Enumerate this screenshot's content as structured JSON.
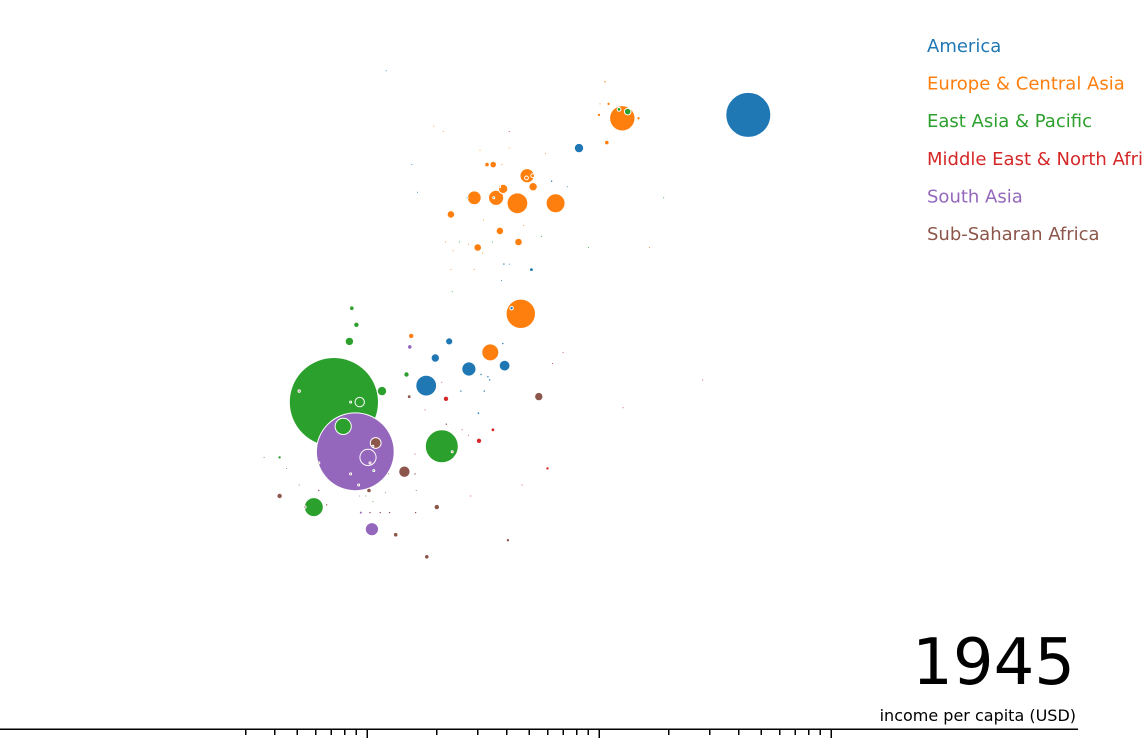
{
  "chart_data": {
    "type": "scatter",
    "title": "",
    "year": "1945",
    "xlabel": "income per capita (USD)",
    "ylabel": "",
    "xscale": "log",
    "xlim": [
      300,
      100000
    ],
    "ylim": [
      10,
      75
    ],
    "grid": false,
    "legend_position": "top-right",
    "region_colors": {
      "America": "#1f77b4",
      "Europe & Central Asia": "#ff7f0e",
      "East Asia & Pacific": "#2ca02c",
      "Middle East & North Africa": "#d62728",
      "South Asia": "#9467bd",
      "Sub-Saharan Africa": "#8c564b"
    },
    "legend": [
      {
        "name": "America",
        "color": "#1f77b4"
      },
      {
        "name": "Europe & Central Asia",
        "color": "#ff7f0e"
      },
      {
        "name": "East Asia & Pacific",
        "color": "#2ca02c"
      },
      {
        "name": "Middle East & North Africa",
        "color": "#d62728"
      },
      {
        "name": "South Asia",
        "color": "#9467bd"
      },
      {
        "name": "Sub-Saharan Africa",
        "color": "#8c564b"
      }
    ],
    "points": [
      {
        "region": "East Asia & Pacific",
        "x": 720,
        "y": 39.5,
        "pop": 550000000
      },
      {
        "region": "South Asia",
        "x": 890,
        "y": 35.0,
        "pop": 420000000
      },
      {
        "region": "America",
        "x": 44000,
        "y": 65.5,
        "pop": 140000000
      },
      {
        "region": "East Asia & Pacific",
        "x": 2100,
        "y": 35.5,
        "pop": 75000000
      },
      {
        "region": "Europe & Central Asia",
        "x": 4600,
        "y": 47.5,
        "pop": 60000000
      },
      {
        "region": "Europe & Central Asia",
        "x": 12600,
        "y": 65.2,
        "pop": 45000000
      },
      {
        "region": "East Asia & Pacific",
        "x": 790,
        "y": 37.3,
        "pop": 18000000
      },
      {
        "region": "South Asia",
        "x": 1010,
        "y": 34.5,
        "pop": 18000000
      },
      {
        "region": "Europe & Central Asia",
        "x": 3400,
        "y": 44.0,
        "pop": 20000000
      },
      {
        "region": "East Asia & Pacific",
        "x": 590,
        "y": 30.0,
        "pop": 25000000
      },
      {
        "region": "America",
        "x": 1800,
        "y": 41.0,
        "pop": 30000000
      },
      {
        "region": "Europe & Central Asia",
        "x": 4450,
        "y": 57.5,
        "pop": 30000000
      },
      {
        "region": "Europe & Central Asia",
        "x": 6500,
        "y": 57.5,
        "pop": 25000000
      },
      {
        "region": "America",
        "x": 2750,
        "y": 42.5,
        "pop": 14000000
      },
      {
        "region": "Europe & Central Asia",
        "x": 3600,
        "y": 58.0,
        "pop": 16000000
      },
      {
        "region": "Europe & Central Asia",
        "x": 4900,
        "y": 60.0,
        "pop": 14000000
      },
      {
        "region": "Europe & Central Asia",
        "x": 2900,
        "y": 58.0,
        "pop": 13000000
      },
      {
        "region": "South Asia",
        "x": 1050,
        "y": 28.0,
        "pop": 12000000
      },
      {
        "region": "Sub-Saharan Africa",
        "x": 1090,
        "y": 35.8,
        "pop": 8000000
      },
      {
        "region": "Sub-Saharan Africa",
        "x": 1450,
        "y": 33.2,
        "pop": 9000000
      },
      {
        "region": "America",
        "x": 3920,
        "y": 42.8,
        "pop": 8000000
      },
      {
        "region": "America",
        "x": 8200,
        "y": 62.5,
        "pop": 6000000
      },
      {
        "region": "East Asia & Pacific",
        "x": 1160,
        "y": 40.5,
        "pop": 6000000
      },
      {
        "region": "East Asia & Pacific",
        "x": 930,
        "y": 39.5,
        "pop": 6000000
      },
      {
        "region": "East Asia & Pacific",
        "x": 840,
        "y": 45.0,
        "pop": 5000000
      },
      {
        "region": "Europe & Central Asia",
        "x": 3860,
        "y": 58.8,
        "pop": 6000000
      },
      {
        "region": "Europe & Central Asia",
        "x": 5200,
        "y": 59.0,
        "pop": 5000000
      },
      {
        "region": "Sub-Saharan Africa",
        "x": 5500,
        "y": 40.0,
        "pop": 5000000
      },
      {
        "region": "America",
        "x": 2260,
        "y": 45.0,
        "pop": 3500000
      },
      {
        "region": "America",
        "x": 1970,
        "y": 43.5,
        "pop": 5000000
      },
      {
        "region": "East Asia & Pacific",
        "x": 13300,
        "y": 65.8,
        "pop": 3000000
      },
      {
        "region": "Europe & Central Asia",
        "x": 2300,
        "y": 56.5,
        "pop": 4000000
      },
      {
        "region": "Europe & Central Asia",
        "x": 3740,
        "y": 55.0,
        "pop": 4000000
      },
      {
        "region": "Europe & Central Asia",
        "x": 4500,
        "y": 54.0,
        "pop": 4000000
      },
      {
        "region": "Europe & Central Asia",
        "x": 3500,
        "y": 61.0,
        "pop": 3000000
      },
      {
        "region": "Europe & Central Asia",
        "x": 3000,
        "y": 53.5,
        "pop": 4000000
      },
      {
        "region": "Europe & Central Asia",
        "x": 1550,
        "y": 45.5,
        "pop": 2000000
      },
      {
        "region": "East Asia & Pacific",
        "x": 900,
        "y": 46.5,
        "pop": 2000000
      },
      {
        "region": "East Asia & Pacific",
        "x": 860,
        "y": 48.0,
        "pop": 1500000
      },
      {
        "region": "East Asia & Pacific",
        "x": 1480,
        "y": 42.0,
        "pop": 2000000
      },
      {
        "region": "Middle East & North Africa",
        "x": 2190,
        "y": 39.8,
        "pop": 2000000
      },
      {
        "region": "Middle East & North Africa",
        "x": 3040,
        "y": 36.0,
        "pop": 2000000
      },
      {
        "region": "South Asia",
        "x": 1530,
        "y": 44.5,
        "pop": 1500000
      },
      {
        "region": "Sub-Saharan Africa",
        "x": 1330,
        "y": 27.5,
        "pop": 1500000
      },
      {
        "region": "Sub-Saharan Africa",
        "x": 1810,
        "y": 25.5,
        "pop": 1500000
      },
      {
        "region": "Sub-Saharan Africa",
        "x": 2000,
        "y": 30.0,
        "pop": 2000000
      },
      {
        "region": "Sub-Saharan Africa",
        "x": 420,
        "y": 31.0,
        "pop": 2000000
      },
      {
        "region": "Sub-Saharan Africa",
        "x": 1020,
        "y": 31.5,
        "pop": 1500000
      },
      {
        "region": "Sub-Saharan Africa",
        "x": 1520,
        "y": 40.0,
        "pop": 1000000
      },
      {
        "region": "Europe & Central Asia",
        "x": 10800,
        "y": 63.0,
        "pop": 1500000
      },
      {
        "region": "Europe & Central Asia",
        "x": 3290,
        "y": 61.0,
        "pop": 1500000
      },
      {
        "region": "Europe & Central Asia",
        "x": 5180,
        "y": 60.0,
        "pop": 1000000
      },
      {
        "region": "Europe & Central Asia",
        "x": 4870,
        "y": 59.8,
        "pop": 1000000
      },
      {
        "region": "America",
        "x": 5110,
        "y": 51.5,
        "pop": 1000000
      },
      {
        "region": "America",
        "x": 4200,
        "y": 48.0,
        "pop": 800000
      },
      {
        "region": "Sub-Saharan Africa",
        "x": 4050,
        "y": 27.0,
        "pop": 800000
      },
      {
        "region": "Middle East & North Africa",
        "x": 3490,
        "y": 37.0,
        "pop": 1000000
      },
      {
        "region": "Middle East & North Africa",
        "x": 6000,
        "y": 33.5,
        "pop": 800000
      },
      {
        "region": "East Asia & Pacific",
        "x": 12200,
        "y": 66.0,
        "pop": 1000000
      },
      {
        "region": "East Asia & Pacific",
        "x": 420,
        "y": 34.5,
        "pop": 800000
      },
      {
        "region": "Europe & Central Asia",
        "x": 10000,
        "y": 65.5,
        "pop": 800000
      },
      {
        "region": "Europe & Central Asia",
        "x": 11000,
        "y": 66.5,
        "pop": 800000
      },
      {
        "region": "Europe & Central Asia",
        "x": 14800,
        "y": 65.2,
        "pop": 800000
      },
      {
        "region": "America",
        "x": 3020,
        "y": 38.5,
        "pop": 500000
      },
      {
        "region": "America",
        "x": 3200,
        "y": 40.5,
        "pop": 400000
      },
      {
        "region": "America",
        "x": 3380,
        "y": 41.5,
        "pop": 400000
      },
      {
        "region": "America",
        "x": 3320,
        "y": 41.8,
        "pop": 400000
      },
      {
        "region": "America",
        "x": 3850,
        "y": 44.8,
        "pop": 400000
      },
      {
        "region": "America",
        "x": 3890,
        "y": 52.0,
        "pop": 400000
      },
      {
        "region": "America",
        "x": 4120,
        "y": 52.0,
        "pop": 300000
      },
      {
        "region": "America",
        "x": 3800,
        "y": 50.5,
        "pop": 300000
      },
      {
        "region": "America",
        "x": 2540,
        "y": 40.5,
        "pop": 400000
      },
      {
        "region": "America",
        "x": 3100,
        "y": 42.0,
        "pop": 400000
      },
      {
        "region": "America",
        "x": 6250,
        "y": 59.5,
        "pop": 400000
      },
      {
        "region": "Europe & Central Asia",
        "x": 2300,
        "y": 51.5,
        "pop": 300000
      },
      {
        "region": "Europe & Central Asia",
        "x": 2180,
        "y": 54.0,
        "pop": 200000
      },
      {
        "region": "Europe & Central Asia",
        "x": 2740,
        "y": 53.8,
        "pop": 300000
      },
      {
        "region": "Europe & Central Asia",
        "x": 2900,
        "y": 51.5,
        "pop": 300000
      },
      {
        "region": "Europe & Central Asia",
        "x": 3150,
        "y": 53.0,
        "pop": 300000
      },
      {
        "region": "Europe & Central Asia",
        "x": 3070,
        "y": 62.3,
        "pop": 300000
      },
      {
        "region": "Europe & Central Asia",
        "x": 4100,
        "y": 62.5,
        "pop": 300000
      },
      {
        "region": "Europe & Central Asia",
        "x": 5880,
        "y": 62.0,
        "pop": 300000
      },
      {
        "region": "Europe & Central Asia",
        "x": 3730,
        "y": 59.0,
        "pop": 200000
      },
      {
        "region": "Europe & Central Asia",
        "x": 2350,
        "y": 53.2,
        "pop": 300000
      },
      {
        "region": "Europe & Central Asia",
        "x": 10600,
        "y": 68.5,
        "pop": 400000
      },
      {
        "region": "Europe & Central Asia",
        "x": 10100,
        "y": 66.5,
        "pop": 300000
      },
      {
        "region": "Europe & Central Asia",
        "x": 16500,
        "y": 53.5,
        "pop": 100000
      },
      {
        "region": "Europe & Central Asia",
        "x": 3180,
        "y": 56.0,
        "pop": 100000
      },
      {
        "region": "Europe & Central Asia",
        "x": 4730,
        "y": 55.5,
        "pop": 100000
      },
      {
        "region": "Europe & Central Asia",
        "x": 2130,
        "y": 64.0,
        "pop": 100000
      },
      {
        "region": "Europe & Central Asia",
        "x": 3810,
        "y": 61.0,
        "pop": 100000
      },
      {
        "region": "Middle East & North Africa",
        "x": 4100,
        "y": 64.0,
        "pop": 200000
      },
      {
        "region": "Middle East & North Africa",
        "x": 1610,
        "y": 34.8,
        "pop": 300000
      },
      {
        "region": "Middle East & North Africa",
        "x": 2570,
        "y": 37.0,
        "pop": 200000
      },
      {
        "region": "Middle East & North Africa",
        "x": 2740,
        "y": 36.5,
        "pop": 200000
      },
      {
        "region": "Middle East & North Africa",
        "x": 2100,
        "y": 41.3,
        "pop": 200000
      },
      {
        "region": "Middle East & North Africa",
        "x": 1780,
        "y": 38.8,
        "pop": 300000
      },
      {
        "region": "Middle East & North Africa",
        "x": 2330,
        "y": 35.0,
        "pop": 200000
      },
      {
        "region": "Middle East & North Africa",
        "x": 6300,
        "y": 43.0,
        "pop": 200000
      },
      {
        "region": "Middle East & North Africa",
        "x": 7000,
        "y": 44.0,
        "pop": 200000
      },
      {
        "region": "Middle East & North Africa",
        "x": 4660,
        "y": 32.0,
        "pop": 100000
      },
      {
        "region": "Middle East & North Africa",
        "x": 2800,
        "y": 31.0,
        "pop": 50000
      },
      {
        "region": "Middle East & North Africa",
        "x": 12700,
        "y": 39.0,
        "pop": 50000
      },
      {
        "region": "Middle East & North Africa",
        "x": 28000,
        "y": 41.5,
        "pop": 50000
      },
      {
        "region": "Middle East & North Africa",
        "x": 1030,
        "y": 34.0,
        "pop": 200000
      },
      {
        "region": "East Asia & Pacific",
        "x": 3470,
        "y": 54.0,
        "pop": 200000
      },
      {
        "region": "East Asia & Pacific",
        "x": 3520,
        "y": 58.0,
        "pop": 300000
      },
      {
        "region": "East Asia & Pacific",
        "x": 2330,
        "y": 49.5,
        "pop": 100000
      },
      {
        "region": "East Asia & Pacific",
        "x": 2500,
        "y": 54.0,
        "pop": 100000
      },
      {
        "region": "East Asia & Pacific",
        "x": 5650,
        "y": 54.5,
        "pop": 50000
      },
      {
        "region": "East Asia & Pacific",
        "x": 9000,
        "y": 53.5,
        "pop": 50000
      },
      {
        "region": "East Asia & Pacific",
        "x": 19000,
        "y": 58.0,
        "pop": 50000
      },
      {
        "region": "East Asia & Pacific",
        "x": 1060,
        "y": 30.5,
        "pop": 200000
      },
      {
        "region": "East Asia & Pacific",
        "x": 1070,
        "y": 33.3,
        "pop": 200000
      },
      {
        "region": "South Asia",
        "x": 940,
        "y": 29.5,
        "pop": 600000
      },
      {
        "region": "South Asia",
        "x": 930,
        "y": 31.0,
        "pop": 100000
      },
      {
        "region": "Sub-Saharan Africa",
        "x": 620,
        "y": 31.5,
        "pop": 400000
      },
      {
        "region": "Sub-Saharan Africa",
        "x": 540,
        "y": 30.0,
        "pop": 400000
      },
      {
        "region": "Sub-Saharan Africa",
        "x": 670,
        "y": 30.2,
        "pop": 400000
      },
      {
        "region": "Sub-Saharan Africa",
        "x": 1030,
        "y": 29.5,
        "pop": 400000
      },
      {
        "region": "Sub-Saharan Africa",
        "x": 1140,
        "y": 29.5,
        "pop": 400000
      },
      {
        "region": "Sub-Saharan Africa",
        "x": 1200,
        "y": 31.3,
        "pop": 300000
      },
      {
        "region": "Sub-Saharan Africa",
        "x": 1250,
        "y": 29.5,
        "pop": 400000
      },
      {
        "region": "Sub-Saharan Africa",
        "x": 1240,
        "y": 33.0,
        "pop": 300000
      },
      {
        "region": "Sub-Saharan Africa",
        "x": 1610,
        "y": 33.0,
        "pop": 400000
      },
      {
        "region": "Sub-Saharan Africa",
        "x": 1630,
        "y": 31.5,
        "pop": 300000
      },
      {
        "region": "Sub-Saharan Africa",
        "x": 1620,
        "y": 29.5,
        "pop": 400000
      },
      {
        "region": "Sub-Saharan Africa",
        "x": 450,
        "y": 33.5,
        "pop": 300000
      },
      {
        "region": "Sub-Saharan Africa",
        "x": 510,
        "y": 32.0,
        "pop": 300000
      },
      {
        "region": "Sub-Saharan Africa",
        "x": 620,
        "y": 34.0,
        "pop": 200000
      },
      {
        "region": "Sub-Saharan Africa",
        "x": 510,
        "y": 40.5,
        "pop": 400000
      },
      {
        "region": "Sub-Saharan Africa",
        "x": 1060,
        "y": 35.5,
        "pop": 200000
      },
      {
        "region": "Sub-Saharan Africa",
        "x": 850,
        "y": 33.0,
        "pop": 200000
      },
      {
        "region": "Sub-Saharan Africa",
        "x": 920,
        "y": 32.0,
        "pop": 200000
      },
      {
        "region": "Sub-Saharan Africa",
        "x": 360,
        "y": 34.5,
        "pop": 100000
      },
      {
        "region": "Sub-Saharan Africa",
        "x": 2200,
        "y": 37.5,
        "pop": 400000
      },
      {
        "region": "East Asia & Pacific",
        "x": 990,
        "y": 31.0,
        "pop": 100000
      },
      {
        "region": "East Asia & Pacific",
        "x": 850,
        "y": 39.5,
        "pop": 100000
      },
      {
        "region": "America",
        "x": 1560,
        "y": 61.0,
        "pop": 50000
      },
      {
        "region": "America",
        "x": 1650,
        "y": 58.5,
        "pop": 50000
      },
      {
        "region": "America",
        "x": 2700,
        "y": 58.0,
        "pop": 50000
      },
      {
        "region": "America",
        "x": 7300,
        "y": 59.0,
        "pop": 50000
      },
      {
        "region": "America",
        "x": 1210,
        "y": 69.5,
        "pop": 30000
      },
      {
        "region": "Europe & Central Asia",
        "x": 1940,
        "y": 64.5,
        "pop": 50000
      }
    ]
  }
}
